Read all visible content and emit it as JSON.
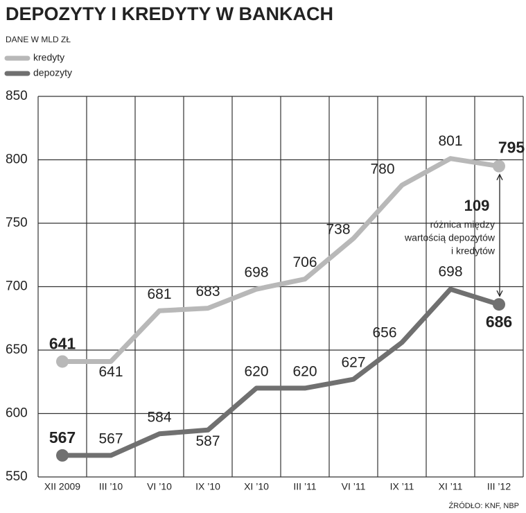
{
  "chart_data": {
    "type": "line",
    "title": "DEPOZYTY I KREDYTY W BANKACH",
    "subtitle": "DANE W MLD ZŁ",
    "categories": [
      "XII 2009",
      "III ’10",
      "VI ’10",
      "IX ’10",
      "XI ’10",
      "III ’11",
      "VI ’11",
      "IX ’11",
      "XI ’11",
      "III ’12"
    ],
    "series": [
      {
        "name": "kredyty",
        "color": "#b8b8b8",
        "values": [
          641,
          641,
          681,
          683,
          698,
          706,
          738,
          780,
          801,
          795
        ]
      },
      {
        "name": "depozyty",
        "color": "#707070",
        "values": [
          567,
          567,
          584,
          587,
          620,
          620,
          627,
          656,
          698,
          686
        ]
      }
    ],
    "ylim": [
      550,
      850
    ],
    "yticks": [
      550,
      600,
      650,
      700,
      750,
      800,
      850
    ],
    "grid": true,
    "annotation": {
      "value": 109,
      "text": [
        "różnica między",
        "wartością depozytów",
        "i kredytów"
      ]
    },
    "source": "ŹRÓDŁO: KNF, NBP"
  }
}
